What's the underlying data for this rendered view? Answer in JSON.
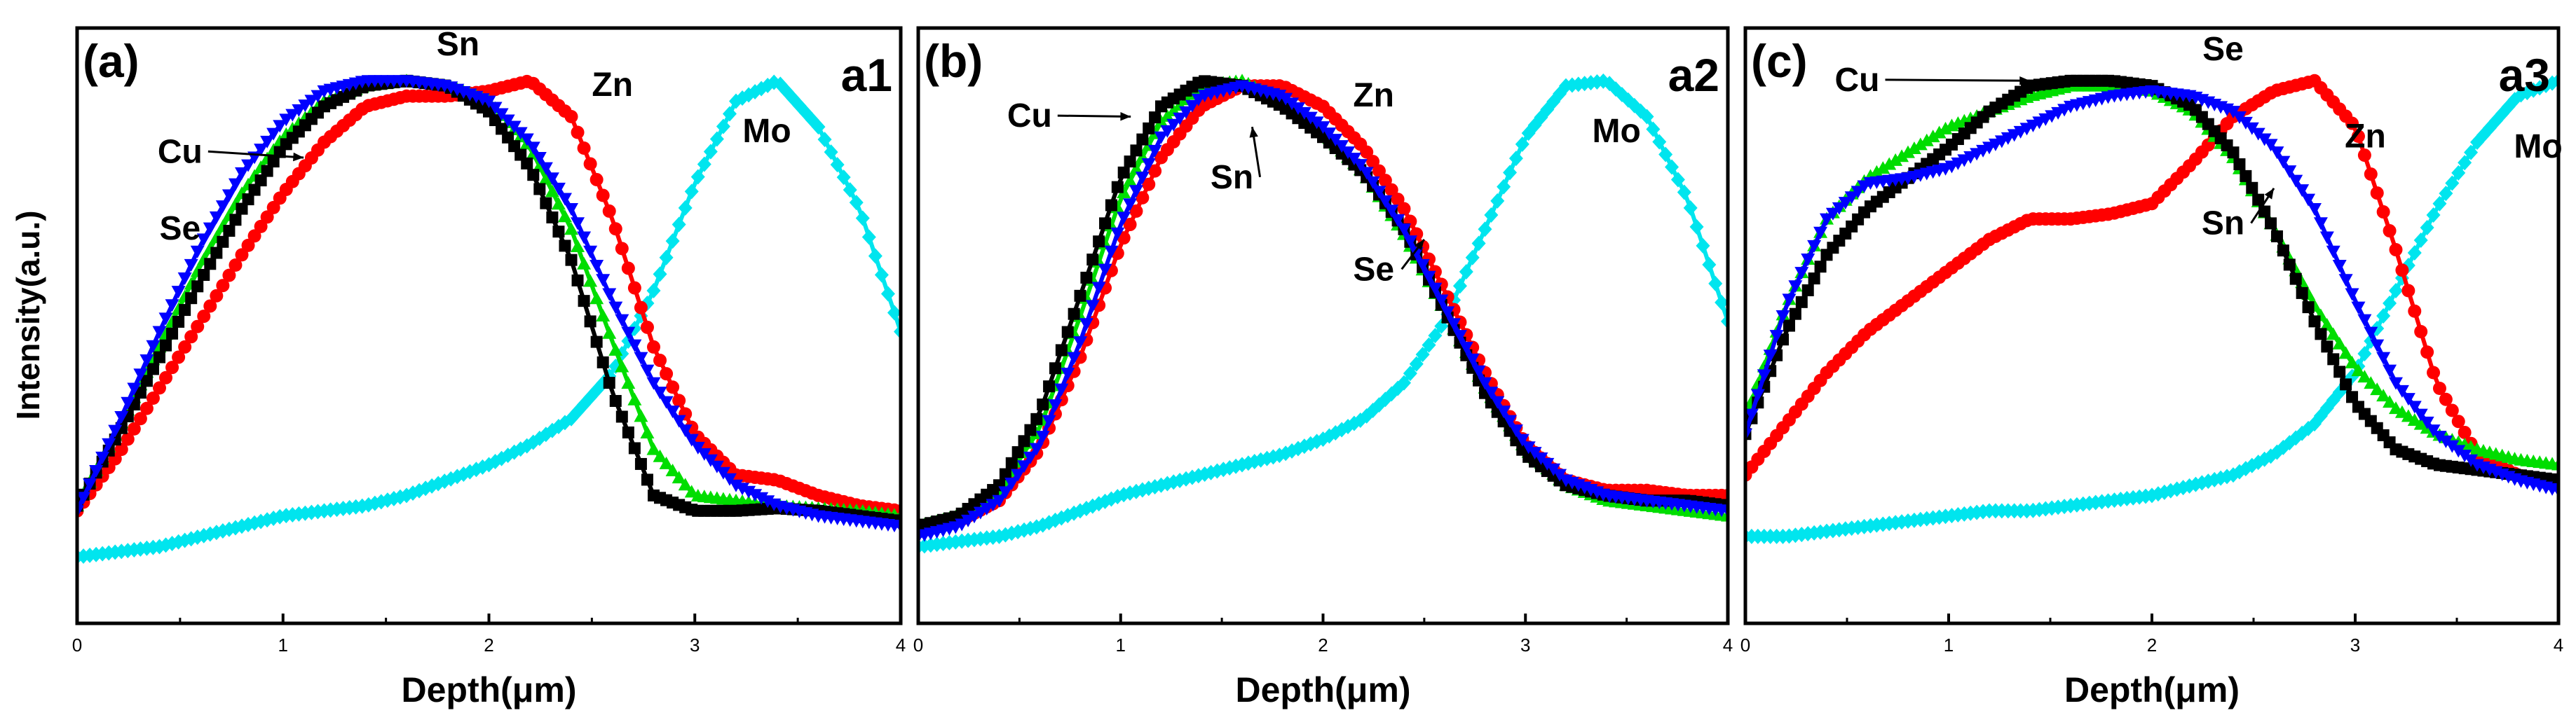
{
  "figure": {
    "shared_ylabel": "Intensity(a.u.)",
    "series_colors": {
      "Cu": "#000000",
      "Zn": "#ff0000",
      "Sn": "#0000ff",
      "Se": "#00dd00",
      "Mo": "#00e5ee"
    },
    "series_markers": {
      "Cu": "square",
      "Zn": "circle",
      "Sn": "triangle-down",
      "Se": "triangle-up",
      "Mo": "diamond"
    }
  },
  "chart_data": [
    {
      "type": "line",
      "panel_label": "(a)",
      "panel_id": "a1",
      "xlabel": "Depth(μm)",
      "ylabel": "Intensity(a.u.)",
      "xlim": [
        0,
        4
      ],
      "ylim": [
        0,
        1
      ],
      "xticks": [
        0,
        1,
        2,
        3,
        4
      ],
      "series": [
        {
          "name": "Cu",
          "x": [
            0,
            0.2,
            0.4,
            0.6,
            0.8,
            1.0,
            1.2,
            1.4,
            1.6,
            1.8,
            2.0,
            2.2,
            2.4,
            2.6,
            2.8,
            3.0,
            3.2,
            3.4,
            3.6,
            3.8,
            4.0
          ],
          "y": [
            0.16,
            0.3,
            0.45,
            0.6,
            0.74,
            0.86,
            0.94,
            0.98,
            0.99,
            0.98,
            0.93,
            0.82,
            0.64,
            0.38,
            0.18,
            0.15,
            0.15,
            0.155,
            0.15,
            0.14,
            0.13
          ]
        },
        {
          "name": "Zn",
          "x": [
            0,
            0.2,
            0.4,
            0.6,
            0.8,
            1.0,
            1.2,
            1.4,
            1.6,
            1.8,
            2.0,
            2.2,
            2.4,
            2.6,
            2.8,
            3.0,
            3.2,
            3.4,
            3.6,
            3.8,
            4.0
          ],
          "y": [
            0.15,
            0.26,
            0.39,
            0.52,
            0.65,
            0.77,
            0.87,
            0.94,
            0.96,
            0.96,
            0.97,
            0.99,
            0.92,
            0.72,
            0.47,
            0.3,
            0.22,
            0.21,
            0.18,
            0.16,
            0.15
          ]
        },
        {
          "name": "Sn",
          "x": [
            0,
            0.2,
            0.4,
            0.6,
            0.8,
            1.0,
            1.2,
            1.4,
            1.6,
            1.8,
            2.0,
            2.2,
            2.4,
            2.6,
            2.8,
            3.0,
            3.2,
            3.4,
            3.6,
            3.8,
            4.0
          ],
          "y": [
            0.15,
            0.32,
            0.5,
            0.67,
            0.81,
            0.91,
            0.97,
            0.99,
            0.99,
            0.98,
            0.95,
            0.87,
            0.74,
            0.56,
            0.4,
            0.28,
            0.2,
            0.16,
            0.14,
            0.13,
            0.12
          ]
        },
        {
          "name": "Se",
          "x": [
            0,
            0.2,
            0.4,
            0.6,
            0.8,
            1.0,
            1.2,
            1.4,
            1.6,
            1.8,
            2.0,
            2.2,
            2.4,
            2.6,
            2.8,
            3.0,
            3.2,
            3.4,
            3.6,
            3.8,
            4.0
          ],
          "y": [
            0.16,
            0.31,
            0.47,
            0.63,
            0.77,
            0.88,
            0.95,
            0.98,
            0.99,
            0.98,
            0.95,
            0.86,
            0.7,
            0.48,
            0.27,
            0.18,
            0.17,
            0.16,
            0.155,
            0.15,
            0.14
          ]
        },
        {
          "name": "Mo",
          "x": [
            0,
            0.2,
            0.4,
            0.6,
            0.8,
            1.0,
            1.2,
            1.4,
            1.6,
            1.8,
            2.0,
            2.2,
            2.4,
            2.6,
            2.8,
            3.0,
            3.2,
            3.4,
            3.6,
            3.8,
            4.0
          ],
          "y": [
            0.06,
            0.07,
            0.08,
            0.1,
            0.12,
            0.14,
            0.15,
            0.16,
            0.18,
            0.21,
            0.24,
            0.28,
            0.33,
            0.42,
            0.58,
            0.79,
            0.95,
            0.99,
            0.9,
            0.74,
            0.5
          ]
        }
      ],
      "annotations": [
        {
          "text": "Cu",
          "x": 0.5,
          "y": 0.83,
          "arrow_to": [
            1.1,
            0.84
          ]
        },
        {
          "text": "Se",
          "x": 0.5,
          "y": 0.68
        },
        {
          "text": "Sn",
          "x": 1.85,
          "y": 1.04
        },
        {
          "text": "Zn",
          "x": 2.6,
          "y": 0.96
        },
        {
          "text": "Mo",
          "x": 3.35,
          "y": 0.87
        }
      ]
    },
    {
      "type": "line",
      "panel_label": "(b)",
      "panel_id": "a2",
      "xlabel": "Depth(μm)",
      "ylabel": "Intensity(a.u.)",
      "xlim": [
        0,
        4
      ],
      "ylim": [
        0,
        1
      ],
      "xticks": [
        0,
        1,
        2,
        3,
        4
      ],
      "series": [
        {
          "name": "Cu",
          "x": [
            0,
            0.2,
            0.4,
            0.6,
            0.8,
            1.0,
            1.2,
            1.4,
            1.6,
            1.8,
            2.0,
            2.2,
            2.4,
            2.6,
            2.8,
            3.0,
            3.2,
            3.4,
            3.6,
            3.8,
            4.0
          ],
          "y": [
            0.12,
            0.14,
            0.2,
            0.34,
            0.57,
            0.8,
            0.94,
            0.99,
            0.98,
            0.94,
            0.88,
            0.81,
            0.7,
            0.54,
            0.38,
            0.26,
            0.2,
            0.18,
            0.17,
            0.17,
            0.16
          ]
        },
        {
          "name": "Zn",
          "x": [
            0,
            0.2,
            0.4,
            0.6,
            0.8,
            1.0,
            1.2,
            1.4,
            1.6,
            1.8,
            2.0,
            2.2,
            2.4,
            2.6,
            2.8,
            3.0,
            3.2,
            3.4,
            3.6,
            3.8,
            4.0
          ],
          "y": [
            0.11,
            0.13,
            0.17,
            0.27,
            0.45,
            0.67,
            0.84,
            0.94,
            0.98,
            0.98,
            0.94,
            0.86,
            0.74,
            0.58,
            0.42,
            0.28,
            0.21,
            0.19,
            0.19,
            0.18,
            0.18
          ]
        },
        {
          "name": "Sn",
          "x": [
            0,
            0.2,
            0.4,
            0.6,
            0.8,
            1.0,
            1.2,
            1.4,
            1.6,
            1.8,
            2.0,
            2.2,
            2.4,
            2.6,
            2.8,
            3.0,
            3.2,
            3.4,
            3.6,
            3.8,
            4.0
          ],
          "y": [
            0.1,
            0.12,
            0.17,
            0.28,
            0.48,
            0.71,
            0.88,
            0.96,
            0.98,
            0.96,
            0.9,
            0.82,
            0.7,
            0.55,
            0.4,
            0.28,
            0.21,
            0.18,
            0.17,
            0.16,
            0.15
          ]
        },
        {
          "name": "Se",
          "x": [
            0,
            0.2,
            0.4,
            0.6,
            0.8,
            1.0,
            1.2,
            1.4,
            1.6,
            1.8,
            2.0,
            2.2,
            2.4,
            2.6,
            2.8,
            3.0,
            3.2,
            3.4,
            3.6,
            3.8,
            4.0
          ],
          "y": [
            0.12,
            0.14,
            0.19,
            0.31,
            0.53,
            0.76,
            0.91,
            0.98,
            0.99,
            0.95,
            0.89,
            0.81,
            0.69,
            0.54,
            0.39,
            0.27,
            0.2,
            0.17,
            0.16,
            0.15,
            0.14
          ]
        },
        {
          "name": "Mo",
          "x": [
            0,
            0.2,
            0.4,
            0.6,
            0.8,
            1.0,
            1.2,
            1.4,
            1.6,
            1.8,
            2.0,
            2.2,
            2.4,
            2.6,
            2.8,
            3.0,
            3.2,
            3.4,
            3.6,
            3.8,
            4.0
          ],
          "y": [
            0.08,
            0.09,
            0.1,
            0.12,
            0.15,
            0.18,
            0.2,
            0.22,
            0.24,
            0.26,
            0.29,
            0.33,
            0.4,
            0.52,
            0.7,
            0.88,
            0.98,
            0.99,
            0.92,
            0.76,
            0.52
          ]
        }
      ],
      "annotations": [
        {
          "text": "Cu",
          "x": 0.55,
          "y": 0.9,
          "arrow_to": [
            1.05,
            0.92
          ]
        },
        {
          "text": "Sn",
          "x": 1.55,
          "y": 0.78,
          "arrow_to": [
            1.65,
            0.9
          ]
        },
        {
          "text": "Zn",
          "x": 2.25,
          "y": 0.94
        },
        {
          "text": "Se",
          "x": 2.25,
          "y": 0.6,
          "arrow_to": [
            2.5,
            0.68
          ]
        },
        {
          "text": "Mo",
          "x": 3.45,
          "y": 0.87
        }
      ]
    },
    {
      "type": "line",
      "panel_label": "(c)",
      "panel_id": "a3",
      "xlabel": "Depth(μm)",
      "ylabel": "Intensity(a.u.)",
      "xlim": [
        0,
        4
      ],
      "ylim": [
        0,
        1
      ],
      "xticks": [
        0,
        1,
        2,
        3,
        4
      ],
      "series": [
        {
          "name": "Cu",
          "x": [
            0,
            0.2,
            0.4,
            0.6,
            0.8,
            1.0,
            1.2,
            1.4,
            1.6,
            1.8,
            2.0,
            2.2,
            2.4,
            2.6,
            2.8,
            3.0,
            3.2,
            3.4,
            3.6,
            3.8,
            4.0
          ],
          "y": [
            0.3,
            0.5,
            0.65,
            0.74,
            0.8,
            0.86,
            0.93,
            0.98,
            0.99,
            0.99,
            0.98,
            0.94,
            0.85,
            0.7,
            0.52,
            0.36,
            0.27,
            0.24,
            0.23,
            0.22,
            0.21
          ]
        },
        {
          "name": "Zn",
          "x": [
            0,
            0.2,
            0.4,
            0.6,
            0.8,
            1.0,
            1.2,
            1.4,
            1.6,
            1.8,
            2.0,
            2.2,
            2.4,
            2.6,
            2.8,
            3.0,
            3.2,
            3.4,
            3.6,
            3.8,
            4.0
          ],
          "y": [
            0.22,
            0.32,
            0.42,
            0.5,
            0.56,
            0.62,
            0.68,
            0.72,
            0.72,
            0.73,
            0.75,
            0.83,
            0.92,
            0.97,
            0.99,
            0.9,
            0.66,
            0.4,
            0.26,
            0.22,
            0.2
          ]
        },
        {
          "name": "Sn",
          "x": [
            0,
            0.2,
            0.4,
            0.6,
            0.8,
            1.0,
            1.2,
            1.4,
            1.6,
            1.8,
            2.0,
            2.2,
            2.4,
            2.6,
            2.8,
            3.0,
            3.2,
            3.4,
            3.6,
            3.8,
            4.0
          ],
          "y": [
            0.3,
            0.55,
            0.72,
            0.79,
            0.8,
            0.82,
            0.86,
            0.9,
            0.94,
            0.96,
            0.97,
            0.96,
            0.93,
            0.86,
            0.74,
            0.56,
            0.4,
            0.3,
            0.24,
            0.21,
            0.19
          ]
        },
        {
          "name": "Se",
          "x": [
            0,
            0.2,
            0.4,
            0.6,
            0.8,
            1.0,
            1.2,
            1.4,
            1.6,
            1.8,
            2.0,
            2.2,
            2.4,
            2.6,
            2.8,
            3.0,
            3.2,
            3.4,
            3.6,
            3.8,
            4.0
          ],
          "y": [
            0.33,
            0.55,
            0.72,
            0.8,
            0.85,
            0.9,
            0.93,
            0.96,
            0.98,
            0.98,
            0.97,
            0.93,
            0.84,
            0.7,
            0.55,
            0.43,
            0.35,
            0.3,
            0.27,
            0.25,
            0.24
          ]
        },
        {
          "name": "Mo",
          "x": [
            0,
            0.2,
            0.4,
            0.6,
            0.8,
            1.0,
            1.2,
            1.4,
            1.6,
            1.8,
            2.0,
            2.2,
            2.4,
            2.6,
            2.8,
            3.0,
            3.2,
            3.4,
            3.6,
            3.8,
            4.0
          ],
          "y": [
            0.1,
            0.1,
            0.11,
            0.12,
            0.13,
            0.14,
            0.15,
            0.15,
            0.16,
            0.17,
            0.18,
            0.2,
            0.22,
            0.26,
            0.32,
            0.42,
            0.58,
            0.74,
            0.87,
            0.96,
            0.99
          ]
        }
      ],
      "annotations": [
        {
          "text": "Cu",
          "x": 0.55,
          "y": 0.97,
          "arrow_to": [
            1.4,
            0.99
          ]
        },
        {
          "text": "Se",
          "x": 2.35,
          "y": 1.03
        },
        {
          "text": "Zn",
          "x": 3.05,
          "y": 0.86
        },
        {
          "text": "Sn",
          "x": 2.35,
          "y": 0.69,
          "arrow_to": [
            2.6,
            0.78
          ]
        },
        {
          "text": "Mo",
          "x": 3.9,
          "y": 0.84
        }
      ]
    }
  ]
}
